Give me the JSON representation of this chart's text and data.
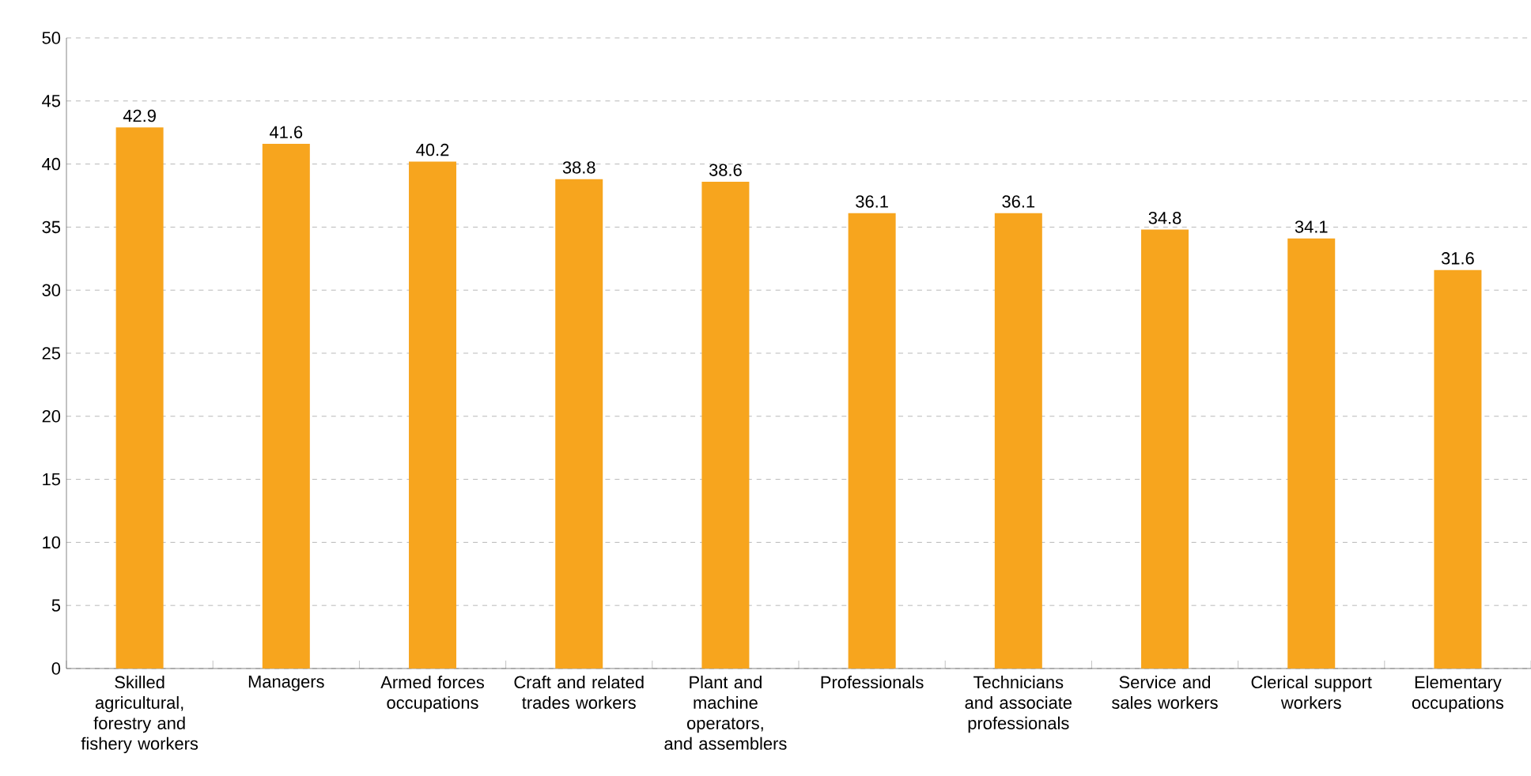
{
  "chart_data": {
    "type": "bar",
    "categories": [
      "Skilled agricultural, forestry and fishery workers",
      "Managers",
      "Armed forces occupations",
      "Craft and related trades workers",
      "Plant and machine operators, and assemblers",
      "Professionals",
      "Technicians and associate professionals",
      "Service and sales workers",
      "Clerical support workers",
      "Elementary occupations"
    ],
    "values": [
      42.9,
      41.6,
      40.2,
      38.8,
      38.6,
      36.1,
      36.1,
      34.8,
      34.1,
      31.6
    ],
    "color": "#f7a51e",
    "ylim": [
      0,
      50
    ],
    "yticks": [
      0,
      5,
      10,
      15,
      20,
      25,
      30,
      35,
      40,
      45,
      50
    ],
    "grid": "y",
    "data_labels": true
  }
}
